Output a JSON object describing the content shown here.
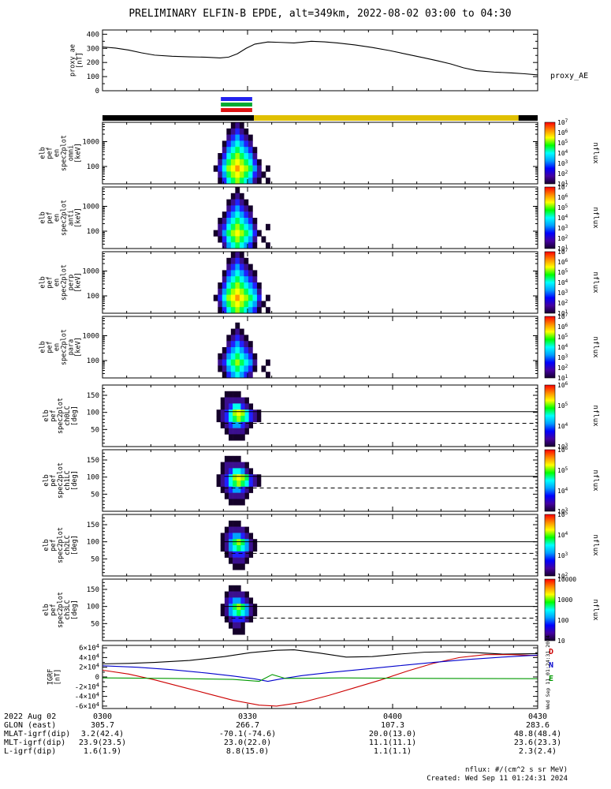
{
  "title": "PRELIMINARY ELFIN-B EPDE, alt=349km, 2022-08-02 03:00 to 04:30",
  "footer": {
    "units": "nflux: #/(cm^2 s sr MeV)",
    "created": "Created: Wed Sep 11 01:24:31 2024",
    "side_date": "Wed Sep 11 01:24:31 2024"
  },
  "time_axis": {
    "labels": [
      "0300",
      "0330",
      "0400",
      "0430"
    ],
    "fractions": [
      0,
      0.3333,
      0.6667,
      1
    ]
  },
  "annotations": {
    "date_label": "2022 Aug 02",
    "rows": [
      {
        "label": "GLON (east)",
        "values": [
          "305.7",
          "266.7",
          "107.3",
          "283.6"
        ]
      },
      {
        "label": "MLAT-igrf(dip)",
        "values": [
          "3.2(42.4)",
          "-70.1(-74.6)",
          "20.0(13.0)",
          "48.8(48.4)"
        ]
      },
      {
        "label": "MLT-igrf(dip)",
        "values": [
          "23.9(23.5)",
          "23.0(22.0)",
          "11.1(11.1)",
          "23.6(23.3)"
        ]
      },
      {
        "label": "L-igrf(dip)",
        "values": [
          "1.6(1.9)",
          "8.8(15.0)",
          "1.1(1.1)",
          "2.3(2.4)"
        ]
      }
    ]
  },
  "zone_strips": {
    "t0": 0.272,
    "t1": 0.344,
    "colors": [
      "#2222ee",
      "#00aa33",
      "#dd1111"
    ]
  },
  "avail_bar": {
    "segments": [
      {
        "color": "#000000",
        "t0": 0,
        "t1": 0.348
      },
      {
        "color": "#e0c000",
        "t0": 0.348,
        "t1": 0.956
      },
      {
        "color": "#000000",
        "t0": 0.956,
        "t1": 1
      }
    ]
  },
  "colormap": [
    "none",
    "#14002a",
    "#3b0f8f",
    "#2121ff",
    "#00a2ff",
    "#00ffee",
    "#00ff55",
    "#a0ff00",
    "#ffff00",
    "#ff9900"
  ],
  "colorbar_gradient": [
    "#16002e",
    "#4400a0",
    "#0000ff",
    "#00a0ff",
    "#00ffff",
    "#00ff00",
    "#ffff00",
    "#ff8800",
    "#ff0000"
  ],
  "colorbar_title": "nflux",
  "chart_data": [
    {
      "type": "line",
      "id": "proxy_ae",
      "ylabel_lines": [
        "proxy_ae",
        "[nT]"
      ],
      "right_label": "proxy_AE",
      "ylim": [
        0,
        430
      ],
      "yticks": [
        0,
        100,
        200,
        300,
        400
      ],
      "y_minor_step": 50,
      "color": "#000000",
      "x": [
        0,
        0.03,
        0.06,
        0.09,
        0.12,
        0.16,
        0.2,
        0.24,
        0.27,
        0.29,
        0.31,
        0.33,
        0.35,
        0.38,
        0.41,
        0.44,
        0.46,
        0.48,
        0.51,
        0.54,
        0.58,
        0.62,
        0.66,
        0.7,
        0.74,
        0.77,
        0.8,
        0.83,
        0.86,
        0.9,
        0.94,
        0.97,
        1.0
      ],
      "values": [
        310,
        302,
        288,
        268,
        252,
        244,
        240,
        237,
        232,
        238,
        262,
        300,
        330,
        345,
        342,
        338,
        344,
        350,
        346,
        338,
        324,
        306,
        284,
        258,
        232,
        212,
        190,
        162,
        142,
        132,
        126,
        120,
        112
      ]
    },
    {
      "type": "heatmap",
      "id": "en_omni",
      "ylabel_lines": [
        "elb",
        "pef",
        "en",
        "spec2plot",
        "omni"
      ],
      "unit": "[keV]",
      "yscale": "log",
      "ylim": [
        20,
        6000
      ],
      "yticks": [
        100,
        1000
      ],
      "colorbar_labels": [
        "10^7",
        "10^6",
        "10^5",
        "10^4",
        "10^3",
        "10^2",
        "10^1"
      ],
      "burst": {
        "t0": 0.255,
        "t1": 0.395,
        "rows": [
          "00001210000000",
          "00012321000000",
          "00023432100000",
          "00134543200000",
          "00245654310000",
          "01356765420000",
          "02467876531000",
          "13578987642010",
          "02467876532100",
          "01356765421010"
        ]
      }
    },
    {
      "type": "heatmap",
      "id": "en_anti",
      "ylabel_lines": [
        "elb",
        "pef",
        "en",
        "spec2plot",
        "anti"
      ],
      "unit": "[keV]",
      "yscale": "log",
      "ylim": [
        20,
        6000
      ],
      "yticks": [
        100,
        1000
      ],
      "colorbar_labels": [
        "10^7",
        "10^6",
        "10^5",
        "10^4",
        "10^3",
        "10^2",
        "10^1"
      ],
      "burst": {
        "t0": 0.255,
        "t1": 0.395,
        "rows": [
          "00000100000000",
          "00001210000000",
          "00012321000000",
          "00023432100000",
          "00134543200000",
          "01245654310000",
          "02356765420010",
          "12467876531000",
          "01356765420100",
          "00245654310010"
        ]
      }
    },
    {
      "type": "heatmap",
      "id": "en_perp",
      "ylabel_lines": [
        "elb",
        "pef",
        "en",
        "spec2plot",
        "perp"
      ],
      "unit": "[keV]",
      "yscale": "log",
      "ylim": [
        20,
        6000
      ],
      "yticks": [
        100,
        1000
      ],
      "colorbar_labels": [
        "10^7",
        "10^6",
        "10^5",
        "10^4",
        "10^3",
        "10^2",
        "10^1"
      ],
      "burst": {
        "t0": 0.255,
        "t1": 0.395,
        "rows": [
          "00001210000000",
          "00012321000000",
          "00023432100000",
          "00134543210000",
          "00245654320000",
          "01356765431000",
          "02467876542000",
          "13578987653010",
          "02467876542100",
          "01356765431010"
        ]
      }
    },
    {
      "type": "heatmap",
      "id": "en_para",
      "ylabel_lines": [
        "elb",
        "pef",
        "en",
        "spec2plot",
        "para"
      ],
      "unit": "[keV]",
      "yscale": "log",
      "ylim": [
        20,
        6000
      ],
      "yticks": [
        100,
        1000
      ],
      "colorbar_labels": [
        "10^7",
        "10^6",
        "10^5",
        "10^4",
        "10^3",
        "10^2",
        "10^1"
      ],
      "burst": {
        "t0": 0.255,
        "t1": 0.395,
        "rows": [
          "00000000000000",
          "00000100000000",
          "00001210000000",
          "00012321000000",
          "00023432100000",
          "00134543200000",
          "01245654310000",
          "02356765420010",
          "01245654310100",
          "00134543200010"
        ]
      }
    },
    {
      "type": "heatmap",
      "id": "pa_ch0",
      "ylabel_lines": [
        "elb",
        "pef",
        "spec2plot",
        "ch0LC"
      ],
      "unit": "[deg]",
      "yscale": "linear",
      "ylim": [
        0,
        180
      ],
      "yticks": [
        50,
        100,
        150
      ],
      "y_minor_step": 10,
      "colorbar_labels": [
        "10^6",
        "10^5",
        "10^4",
        "10^3"
      ],
      "overlays": [
        {
          "y": 102,
          "t0": 0.28,
          "t1": 1,
          "style": "solid"
        },
        {
          "y": 68,
          "t0": 0.28,
          "t1": 1,
          "style": "dashed"
        }
      ],
      "burst": {
        "t0": 0.262,
        "t1": 0.392,
        "rows": [
          "00000000000000",
          "00111100000000",
          "01222221000000",
          "01235532100000",
          "12357875321000",
          "12356765321000",
          "01234432100000",
          "00122221000000",
          "00011110000000",
          "00000000000000"
        ]
      }
    },
    {
      "type": "heatmap",
      "id": "pa_ch1",
      "ylabel_lines": [
        "elb",
        "pef",
        "spec2plot",
        "ch1LC"
      ],
      "unit": "[deg]",
      "yscale": "linear",
      "ylim": [
        0,
        180
      ],
      "yticks": [
        50,
        100,
        150
      ],
      "y_minor_step": 10,
      "colorbar_labels": [
        "10^6",
        "10^5",
        "10^4",
        "10^3"
      ],
      "overlays": [
        {
          "y": 102,
          "t0": 0.28,
          "t1": 1,
          "style": "solid"
        },
        {
          "y": 68,
          "t0": 0.28,
          "t1": 1,
          "style": "dashed"
        }
      ],
      "burst": {
        "t0": 0.262,
        "t1": 0.392,
        "rows": [
          "00000000000000",
          "00111100000000",
          "01222221000000",
          "01235542100000",
          "12357876321000",
          "12356765321000",
          "01234432100000",
          "00122221000000",
          "00011110000000",
          "00000000000000"
        ]
      }
    },
    {
      "type": "heatmap",
      "id": "pa_ch2",
      "ylabel_lines": [
        "elb",
        "pef",
        "spec2plot",
        "ch2LC"
      ],
      "unit": "[deg]",
      "yscale": "linear",
      "ylim": [
        0,
        180
      ],
      "yticks": [
        50,
        100,
        150
      ],
      "y_minor_step": 10,
      "colorbar_labels": [
        "10^5",
        "10^4",
        "10^3",
        "10^2"
      ],
      "overlays": [
        {
          "y": 100,
          "t0": 0.28,
          "t1": 1,
          "style": "solid"
        },
        {
          "y": 66,
          "t0": 0.28,
          "t1": 1,
          "style": "dashed"
        }
      ],
      "burst": {
        "t0": 0.262,
        "t1": 0.392,
        "rows": [
          "00000000000000",
          "00011100000000",
          "00122221000000",
          "01234432100000",
          "01246764210000",
          "01245654210000",
          "00123332100000",
          "00012221000000",
          "00001110000000",
          "00000000000000"
        ]
      }
    },
    {
      "type": "heatmap",
      "id": "pa_ch3",
      "ylabel_lines": [
        "elb",
        "pef",
        "spec2plot",
        "ch3LC"
      ],
      "unit": "[deg]",
      "yscale": "linear",
      "ylim": [
        0,
        180
      ],
      "yticks": [
        50,
        100,
        150
      ],
      "y_minor_step": 10,
      "colorbar_labels": [
        "10000",
        "1000",
        "100",
        "10"
      ],
      "overlays": [
        {
          "y": 100,
          "t0": 0.28,
          "t1": 1,
          "style": "solid"
        },
        {
          "y": 66,
          "t0": 0.28,
          "t1": 1,
          "style": "dashed"
        }
      ],
      "burst": {
        "t0": 0.262,
        "t1": 0.392,
        "rows": [
          "00000000000000",
          "00011100000000",
          "00122221000000",
          "00234432100000",
          "01246764210000",
          "01245654210000",
          "00123332100000",
          "00012210000000",
          "00001110000000",
          "00000000000000"
        ]
      }
    },
    {
      "type": "multiline",
      "id": "igrf",
      "ylabel_lines": [
        "IGRF",
        "[nT]"
      ],
      "ylim": [
        -65000,
        65000
      ],
      "yticks": [
        -60000,
        -40000,
        -20000,
        0,
        20000,
        40000,
        60000
      ],
      "ytick_labels": [
        "-6×10^4",
        "-4×10^4",
        "-2×10^4",
        "0",
        "2×10^4",
        "4×10^4",
        "6×10^4"
      ],
      "y_minor_step": 10000,
      "series": [
        {
          "name": "B",
          "color": "#000000",
          "x": [
            0,
            0.06,
            0.12,
            0.2,
            0.28,
            0.34,
            0.4,
            0.44,
            0.5,
            0.56,
            0.62,
            0.68,
            0.74,
            0.8,
            0.86,
            0.92,
            1
          ],
          "values": [
            27000,
            28000,
            30000,
            34000,
            42000,
            50000,
            55000,
            56000,
            49000,
            41000,
            42000,
            47000,
            51000,
            52000,
            50000,
            47000,
            48000
          ]
        },
        {
          "name": "D",
          "color": "#cc0000",
          "x": [
            0,
            0.06,
            0.12,
            0.18,
            0.24,
            0.3,
            0.36,
            0.4,
            0.46,
            0.52,
            0.58,
            0.64,
            0.7,
            0.76,
            0.82,
            0.88,
            0.94,
            1
          ],
          "values": [
            14000,
            6000,
            -6000,
            -20000,
            -34000,
            -48000,
            -58000,
            -60000,
            -52000,
            -38000,
            -22000,
            -6000,
            12000,
            28000,
            40000,
            46000,
            46000,
            44000
          ]
        },
        {
          "name": "N",
          "color": "#0000cc",
          "x": [
            0,
            0.08,
            0.16,
            0.24,
            0.3,
            0.35,
            0.38,
            0.41,
            0.46,
            0.52,
            0.6,
            0.68,
            0.76,
            0.84,
            0.92,
            1
          ],
          "values": [
            23000,
            20000,
            15000,
            8000,
            2000,
            -4000,
            -9000,
            -4000,
            3000,
            9000,
            16000,
            23000,
            30000,
            36000,
            41000,
            45000
          ]
        },
        {
          "name": "E",
          "color": "#009900",
          "x": [
            0,
            0.15,
            0.3,
            0.36,
            0.39,
            0.42,
            0.55,
            0.75,
            1
          ],
          "values": [
            -2000,
            -3000,
            -5000,
            -9000,
            5000,
            -3000,
            -2000,
            -3000,
            -3500
          ]
        }
      ],
      "right_labels": [
        {
          "text": "D",
          "color": "#cc0000"
        },
        {
          "text": "N",
          "color": "#0000cc"
        },
        {
          "text": "E",
          "color": "#009900"
        }
      ]
    }
  ]
}
